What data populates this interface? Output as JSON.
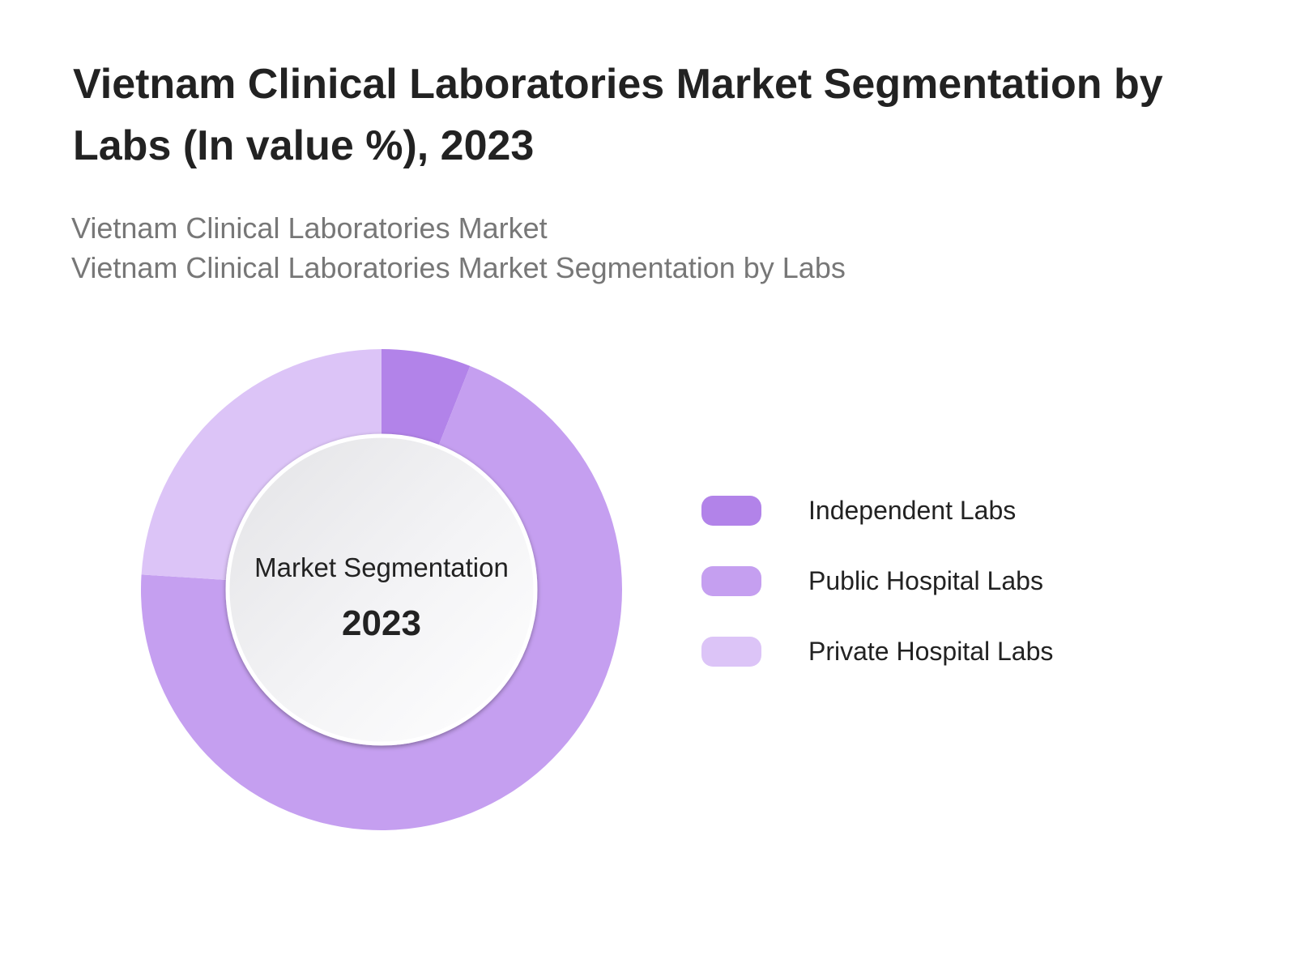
{
  "chart_data": {
    "type": "pie",
    "title": "Vietnam Clinical Laboratories Market Segmentation by Labs (In value %), 2023",
    "subtitles": [
      "Vietnam Clinical Laboratories Market",
      "Vietnam Clinical Laboratories Market Segmentation by Labs"
    ],
    "center_label": "Market Segmentation",
    "center_year": "2023",
    "legend_position": "right",
    "categories": [
      "Independent Labs",
      "Public Hospital Labs",
      "Private Hospital Labs"
    ],
    "values": [
      6,
      70,
      24
    ],
    "colors": [
      "#b283e9",
      "#c59ff0",
      "#dcc4f7"
    ]
  }
}
